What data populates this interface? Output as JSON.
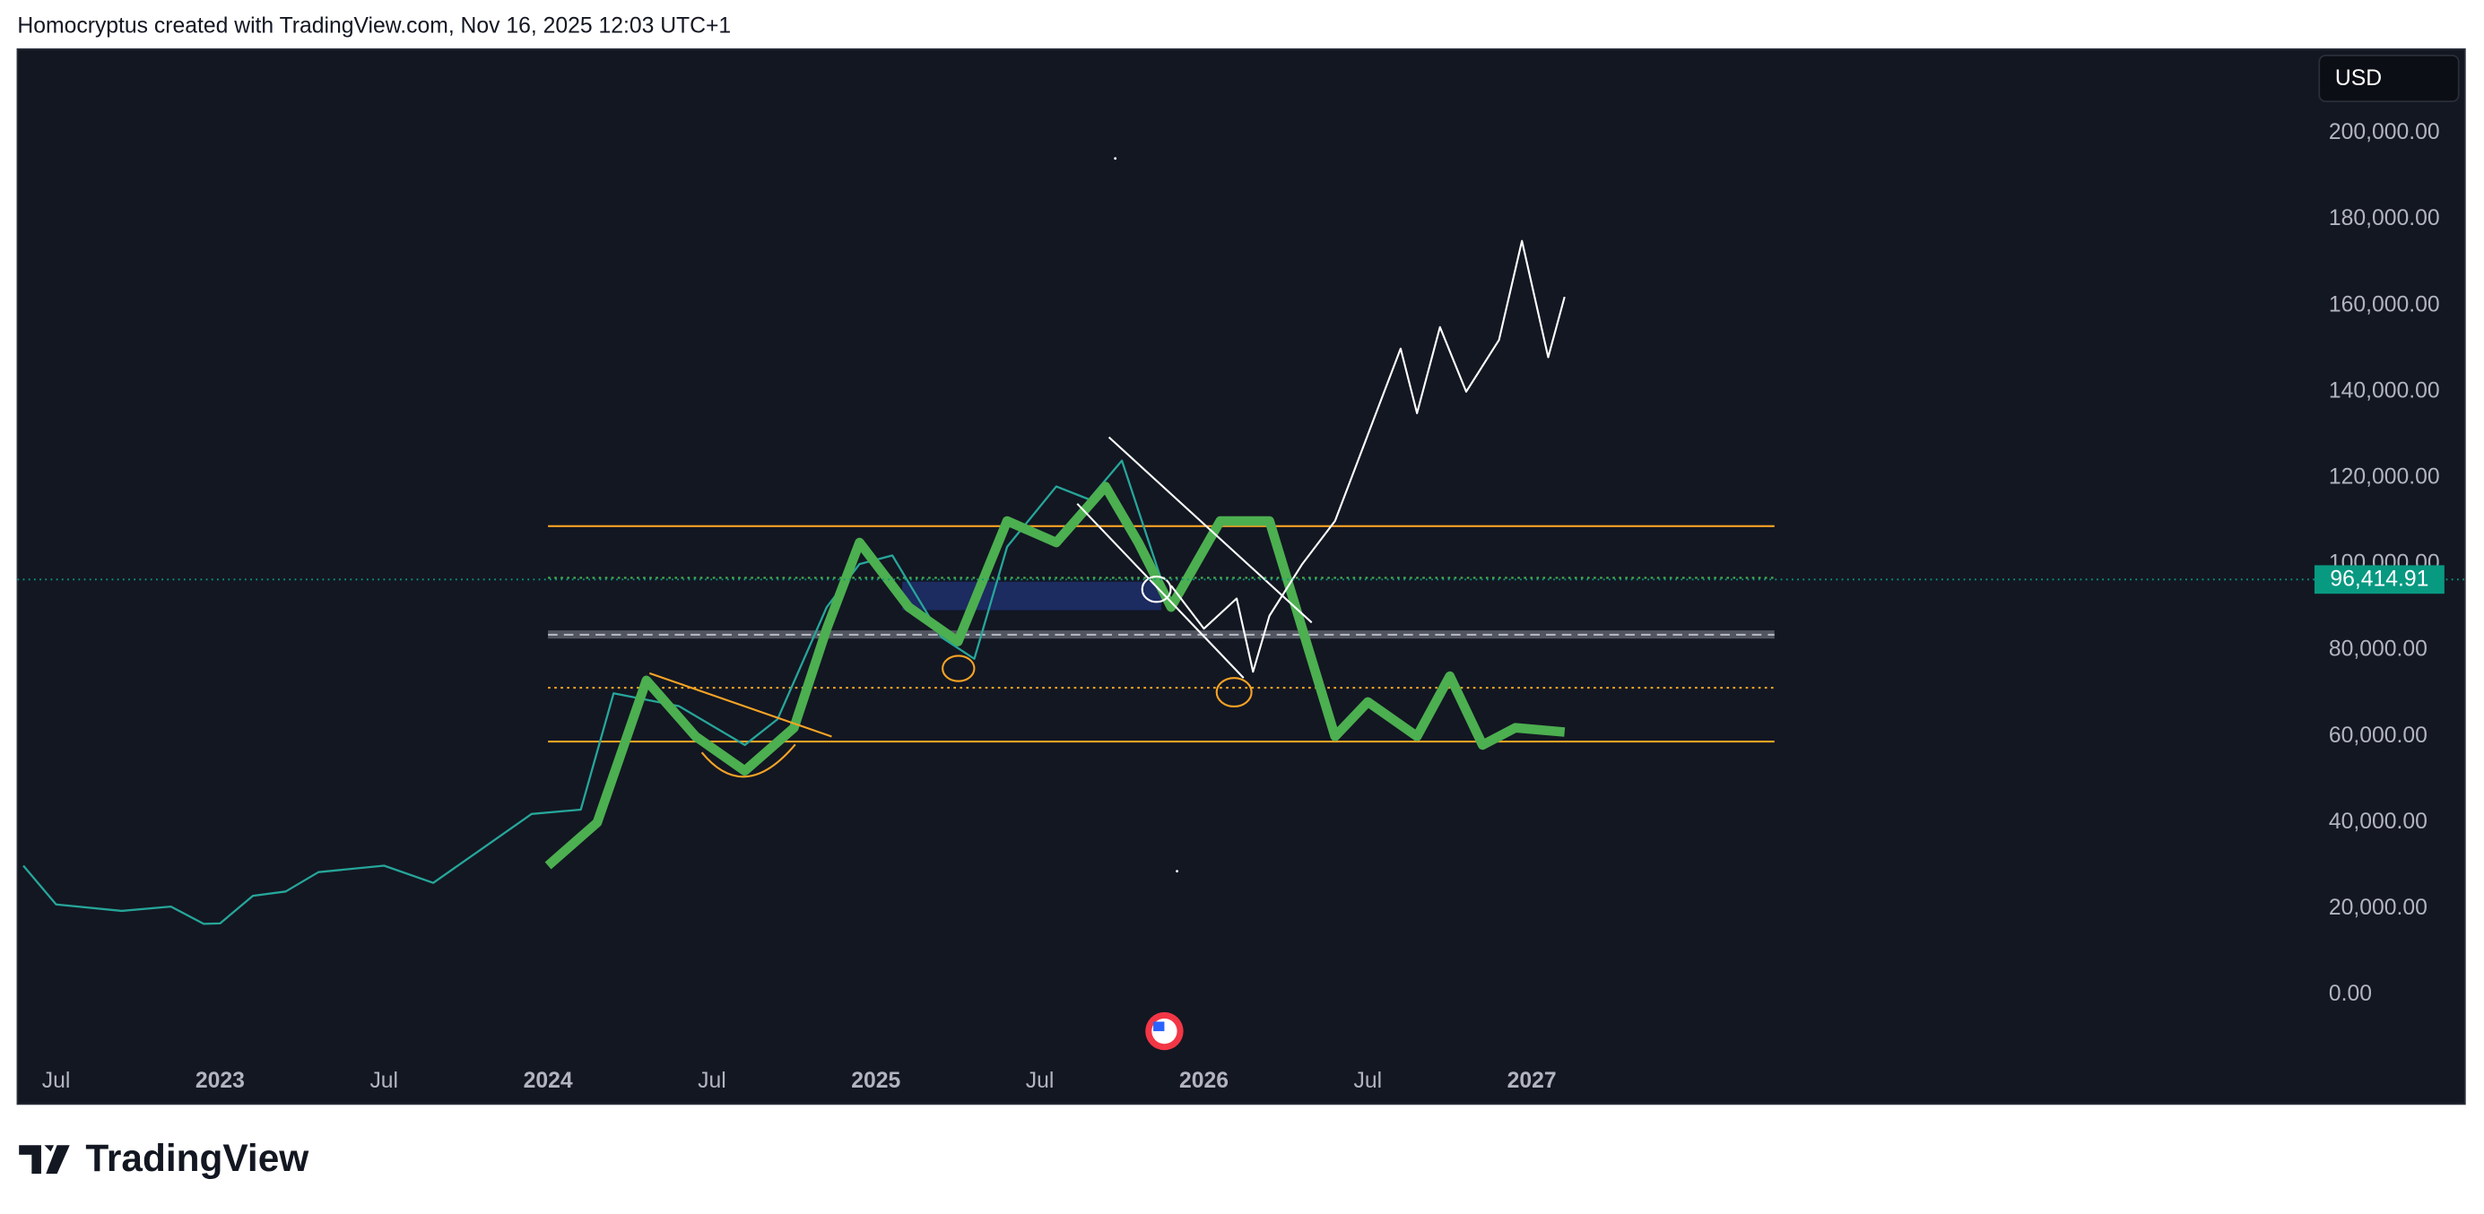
{
  "header": "Homocryptus created with TradingView.com, Nov 16, 2025 12:03 UTC+1",
  "logo": "TradingView",
  "currency": "USD",
  "chart_data": {
    "type": "line",
    "xlim": [
      2022.382,
      2029.382
    ],
    "ylim": [
      -15400,
      219500
    ],
    "xticks": [
      {
        "value": 2022.5,
        "label": "Jul"
      },
      2023,
      {
        "value": 2023.5,
        "label": "Jul"
      },
      2024,
      {
        "value": 2024.5,
        "label": "Jul"
      },
      2025,
      {
        "value": 2025.5,
        "label": "Jul"
      },
      2026,
      {
        "value": 2026.5,
        "label": "Jul"
      },
      2027
    ],
    "yticks": [
      {
        "value": 0,
        "label": "0.00"
      },
      {
        "value": 20000,
        "label": "20,000.00"
      },
      {
        "value": 40000,
        "label": "40,000.00"
      },
      {
        "value": 60000,
        "label": "60,000.00"
      },
      {
        "value": 80000,
        "label": "80,000.00"
      },
      {
        "value": 100000,
        "label": "100,000.00"
      },
      {
        "value": 120000,
        "label": "120,000.00"
      },
      {
        "value": 140000,
        "label": "140,000.00"
      },
      {
        "value": 160000,
        "label": "160,000.00"
      },
      {
        "value": 180000,
        "label": "180,000.00"
      },
      {
        "value": 200000,
        "label": "200,000.00"
      }
    ],
    "last_price": {
      "value": 96414.91,
      "label": "96,414.91",
      "color": "#089981"
    },
    "series": [
      {
        "color": "#26a69a",
        "width": 1.3,
        "x": [
          2022.4,
          2022.5,
          2022.7,
          2022.85,
          2022.95,
          2023.0,
          2023.1,
          2023.2,
          2023.3,
          2023.5,
          2023.65,
          2023.8,
          2023.95,
          2024.1,
          2024.2,
          2024.4,
          2024.6,
          2024.7,
          2024.85,
          2024.95,
          2025.05,
          2025.2,
          2025.3,
          2025.4,
          2025.55,
          2025.65,
          2025.75,
          2025.87
        ],
        "values": [
          30000,
          21000,
          19500,
          20500,
          16500,
          16600,
          23000,
          24000,
          28500,
          30000,
          26000,
          34000,
          42000,
          43000,
          70000,
          67000,
          58000,
          64000,
          90000,
          100000,
          102000,
          83000,
          78000,
          104000,
          118000,
          115000,
          124000,
          96414.91
        ]
      },
      {
        "color": "#4caf50",
        "width": 6,
        "x": [
          2024.0,
          2024.15,
          2024.3,
          2024.45,
          2024.6,
          2024.75,
          2024.85,
          2024.95,
          2025.1,
          2025.25,
          2025.4,
          2025.55,
          2025.7,
          2025.8,
          2025.9,
          2026.05,
          2026.2,
          2026.32,
          2026.4,
          2026.5,
          2026.65,
          2026.75,
          2026.85,
          2026.95,
          2027.1
        ],
        "values": [
          30000,
          40000,
          73000,
          60000,
          52000,
          62000,
          85000,
          105000,
          90000,
          82000,
          110000,
          105000,
          118000,
          105000,
          90000,
          110000,
          110000,
          80000,
          60000,
          68000,
          60000,
          74000,
          58000,
          62000,
          61000
        ]
      },
      {
        "color": "#ffffff",
        "width": 1.2,
        "x": [
          2025.9,
          2026.0,
          2026.1,
          2026.15,
          2026.2,
          2026.3,
          2026.4,
          2026.45,
          2026.5,
          2026.6,
          2026.65,
          2026.72,
          2026.8,
          2026.9,
          2026.97,
          2027.05,
          2027.1
        ],
        "values": [
          95000,
          85000,
          92000,
          75000,
          88000,
          100000,
          110000,
          120000,
          130000,
          150000,
          135000,
          155000,
          140000,
          152000,
          175000,
          148000,
          162000
        ]
      }
    ],
    "levels": [
      {
        "value": 108800,
        "color": "#f7a325",
        "style": "solid"
      },
      {
        "value": 58800,
        "color": "#f7a325",
        "style": "solid"
      },
      {
        "value": 71300,
        "color": "#f7a325",
        "style": "dotted"
      },
      {
        "value": 96800,
        "color": "#4caf50",
        "style": "dotted"
      },
      {
        "value": 83600,
        "color": "#b2b5be",
        "style": "dashed"
      }
    ],
    "level_span": [
      2024.0,
      2027.74
    ],
    "zones": [
      {
        "range": [
          82700,
          84600
        ],
        "span": [
          2024.0,
          2027.74
        ],
        "color": "#5d606b"
      },
      {
        "range": [
          89300,
          95900
        ],
        "span": [
          2025.08,
          2025.87
        ],
        "color": "#1e2f6b"
      }
    ]
  }
}
